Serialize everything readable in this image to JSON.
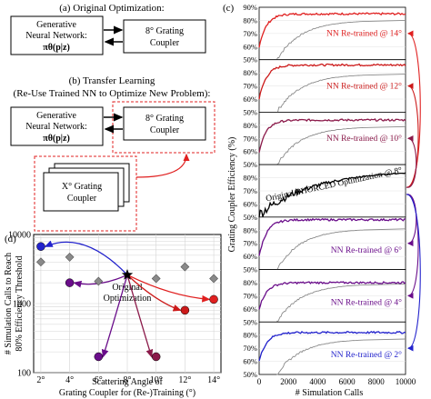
{
  "panel_a": {
    "heading": "(a) Original Optimization:",
    "nn_line1": "Generative",
    "nn_line2": "Neural Network:",
    "nn_line3": "πθ(p|z)",
    "coupler_line1": "8° Grating",
    "coupler_line2": "Coupler"
  },
  "panel_b": {
    "heading": "(b) Transfer Learning",
    "subheading": "(Re-Use Trained NN to Optimize New Problem):",
    "nn_line1": "Generative",
    "nn_line2": "Neural Network:",
    "nn_line3": "πθ(p|z)",
    "coupler_line1": "8° Grating",
    "coupler_line2": "Coupler",
    "stack_line1": "X° Grating",
    "stack_line2": "Coupler"
  },
  "colors": {
    "c2": "#2222cc",
    "c4": "#6a0d8a",
    "c6": "#6a0d8a",
    "c8": "#000000",
    "c10": "#8b1a4a",
    "c12": "#cc1a1a",
    "c14": "#e02020",
    "gray": "#8a8a8a",
    "red_dash": "#e02020"
  },
  "chart_data": [
    {
      "type": "scatter",
      "panel": "(d)",
      "ylabel_line1": "# Simulation Calls to Reach",
      "ylabel_line2": "80% Efficiency Threshold",
      "xlabel_line1": "Scattering Angle of",
      "xlabel_line2": "Grating Coupler for (Re-)Training (°)",
      "y_scale": "log",
      "ylim": [
        100,
        10000
      ],
      "xlim": [
        1.5,
        14.5
      ],
      "xticks": [
        "2°",
        "4°",
        "6°",
        "8°",
        "10°",
        "12°",
        "14°"
      ],
      "yticks": [
        "100",
        "1000",
        "10000"
      ],
      "annotation_line1": "Original",
      "annotation_line2": "Optimization",
      "series": [
        {
          "marker": "circle-retrained",
          "points": [
            {
              "x": 2,
              "y": 6700,
              "color": "#2222cc"
            },
            {
              "x": 4,
              "y": 2000,
              "color": "#6a0d8a"
            },
            {
              "x": 6,
              "y": 170,
              "color": "#6a0d8a"
            },
            {
              "x": 10,
              "y": 170,
              "color": "#8b1a4a"
            },
            {
              "x": 12,
              "y": 800,
              "color": "#cc1a1a"
            },
            {
              "x": 14,
              "y": 1150,
              "color": "#e02020"
            }
          ]
        },
        {
          "marker": "diamond-gray",
          "points": [
            {
              "x": 2,
              "y": 4000
            },
            {
              "x": 4,
              "y": 4700
            },
            {
              "x": 6,
              "y": 2100
            },
            {
              "x": 10,
              "y": 2300
            },
            {
              "x": 12,
              "y": 3400
            },
            {
              "x": 14,
              "y": 2300
            }
          ]
        },
        {
          "marker": "star",
          "points": [
            {
              "x": 8,
              "y": 2600
            }
          ]
        }
      ]
    },
    {
      "type": "line",
      "panel": "(c)",
      "ylabel": "Grating Coupler Efficiency (%)",
      "xlabel": "# Simulation Calls",
      "xlim": [
        0,
        10000
      ],
      "xticks": [
        "0",
        "2000",
        "4000",
        "6000",
        "8000",
        "10000"
      ],
      "subplots": [
        {
          "label": "NN Re-trained @ 14°",
          "color": "#e02020",
          "ylim": [
            50,
            90
          ],
          "yticks": [
            "50%",
            "60%",
            "70%",
            "80%",
            "90%"
          ],
          "retrained_final": 85,
          "reference_final": 80
        },
        {
          "label": "NN Re-trained @ 12°",
          "color": "#cc1a1a",
          "ylim": [
            50,
            90
          ],
          "yticks": [
            "50%",
            "60%",
            "70%",
            "80%",
            "90%"
          ],
          "retrained_final": 86,
          "reference_final": 79
        },
        {
          "label": "NN Re-trained @ 10°",
          "color": "#8b1a4a",
          "ylim": [
            50,
            90
          ],
          "yticks": [
            "50%",
            "60%",
            "70%",
            "80%",
            "90%"
          ],
          "retrained_final": 84,
          "reference_final": 79
        },
        {
          "label": "Original PHORCED Optimization @ 8°",
          "color": "#000000",
          "ylim": [
            50,
            90
          ],
          "yticks": [
            "50%",
            "60%",
            "70%",
            "80%",
            "90%"
          ],
          "retrained_final": 86,
          "reference_final": null
        },
        {
          "label": "NN Re-trained @ 6°",
          "color": "#6a0d8a",
          "ylim": [
            50,
            90
          ],
          "yticks": [
            "50%",
            "60%",
            "70%",
            "80%",
            "90%"
          ],
          "retrained_final": 88,
          "reference_final": 81
        },
        {
          "label": "NN Re-trained @ 4°",
          "color": "#6a0d8a",
          "ylim": [
            50,
            90
          ],
          "yticks": [
            "50%",
            "60%",
            "70%",
            "80%",
            "90%"
          ],
          "retrained_final": 80,
          "reference_final": 79
        },
        {
          "label": "NN Re-trained @ 2°",
          "color": "#2222cc",
          "ylim": [
            50,
            90
          ],
          "yticks": [
            "50%",
            "60%",
            "70%",
            "80%",
            "90%"
          ],
          "retrained_final": 82,
          "reference_final": 77
        }
      ]
    }
  ]
}
